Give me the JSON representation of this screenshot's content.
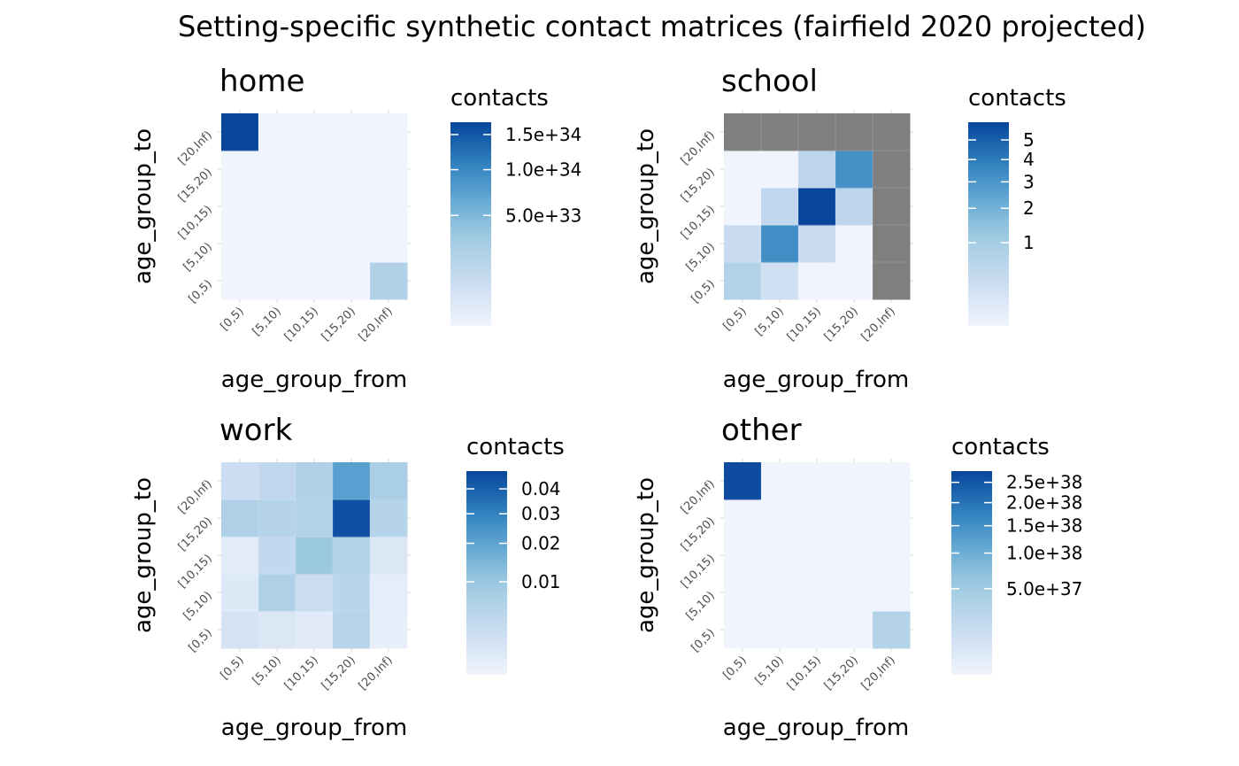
{
  "figure": {
    "title": "Setting-specific synthetic contact matrices (fairfield 2020 projected)"
  },
  "colors": {
    "low": "#f0f4fd",
    "high": "#08469b",
    "na": "#7f7f7f",
    "axis_text": "#4d4d4d"
  },
  "chart_data": [
    {
      "type": "heatmap",
      "title": "home",
      "xlabel": "age_group_from",
      "ylabel": "age_group_to",
      "categories_x": [
        "[0,5)",
        "[5,10)",
        "[10,15)",
        "[15,20)",
        "[20,Inf)"
      ],
      "categories_y": [
        "[0,5)",
        "[5,10)",
        "[10,15)",
        "[15,20)",
        "[20,Inf)"
      ],
      "values": [
        [
          0,
          0,
          0,
          0,
          2e+33
        ],
        [
          0,
          0,
          0,
          0,
          0
        ],
        [
          0,
          0,
          0,
          0,
          0
        ],
        [
          0,
          0,
          0,
          0,
          0
        ],
        [
          1.7e+34,
          0,
          0,
          0,
          0
        ]
      ],
      "legend": {
        "title": "contacts",
        "scale": "sqrt",
        "limits": [
          0,
          1.7e+34
        ],
        "ticks": [
          {
            "value": 1.5e+34,
            "label": "1.5e+34"
          },
          {
            "value": 1e+34,
            "label": "1.0e+34"
          },
          {
            "value": 5e+33,
            "label": "5.0e+33"
          }
        ]
      }
    },
    {
      "type": "heatmap",
      "title": "school",
      "xlabel": "age_group_from",
      "ylabel": "age_group_to",
      "categories_x": [
        "[0,5)",
        "[5,10)",
        "[10,15)",
        "[15,20)",
        "[20,Inf)"
      ],
      "categories_y": [
        "[0,5)",
        "[5,10)",
        "[10,15)",
        "[15,20)",
        "[20,Inf)"
      ],
      "values": [
        [
          0.7,
          0.2,
          0.0,
          0.0,
          null
        ],
        [
          0.3,
          3.3,
          0.3,
          0.0,
          null
        ],
        [
          0.0,
          0.4,
          6.0,
          0.5,
          null
        ],
        [
          0.0,
          0.0,
          0.5,
          3.2,
          null
        ],
        [
          null,
          null,
          null,
          null,
          null
        ]
      ],
      "legend": {
        "title": "contacts",
        "scale": "sqrt",
        "limits": [
          0,
          6
        ],
        "ticks": [
          {
            "value": 5,
            "label": "5"
          },
          {
            "value": 4,
            "label": "4"
          },
          {
            "value": 3,
            "label": "3"
          },
          {
            "value": 2,
            "label": "2"
          },
          {
            "value": 1,
            "label": "1"
          }
        ]
      }
    },
    {
      "type": "heatmap",
      "title": "work",
      "xlabel": "age_group_from",
      "ylabel": "age_group_to",
      "categories_x": [
        "[0,5)",
        "[5,10)",
        "[10,15)",
        "[15,20)",
        "[20,Inf)"
      ],
      "categories_y": [
        "[0,5)",
        "[5,10)",
        "[10,15)",
        "[15,20)",
        "[20,Inf)"
      ],
      "values": [
        [
          0.0012,
          0.0006,
          0.0004,
          0.0046,
          0.0001
        ],
        [
          0.0005,
          0.006,
          0.0022,
          0.0042,
          0.0002
        ],
        [
          0.0003,
          0.003,
          0.01,
          0.0055,
          0.0006
        ],
        [
          0.006,
          0.005,
          0.0055,
          0.045,
          0.005
        ],
        [
          0.002,
          0.0032,
          0.006,
          0.021,
          0.0072
        ]
      ],
      "legend": {
        "title": "contacts",
        "scale": "sqrt",
        "limits": [
          0,
          0.048
        ],
        "ticks": [
          {
            "value": 0.04,
            "label": "0.04"
          },
          {
            "value": 0.03,
            "label": "0.03"
          },
          {
            "value": 0.02,
            "label": "0.02"
          },
          {
            "value": 0.01,
            "label": "0.01"
          }
        ]
      }
    },
    {
      "type": "heatmap",
      "title": "other",
      "xlabel": "age_group_from",
      "ylabel": "age_group_to",
      "categories_x": [
        "[0,5)",
        "[5,10)",
        "[10,15)",
        "[15,20)",
        "[20,Inf)"
      ],
      "categories_y": [
        "[0,5)",
        "[5,10)",
        "[10,15)",
        "[15,20)",
        "[20,Inf)"
      ],
      "values": [
        [
          0,
          0,
          0,
          0,
          3e+37
        ],
        [
          0,
          0,
          0,
          0,
          0
        ],
        [
          0,
          0,
          0,
          0,
          0
        ],
        [
          0,
          0,
          0,
          0,
          0
        ],
        [
          2.7e+38,
          0,
          0,
          0,
          0
        ]
      ],
      "legend": {
        "title": "contacts",
        "scale": "sqrt",
        "limits": [
          0,
          2.8e+38
        ],
        "ticks": [
          {
            "value": 2.5e+38,
            "label": "2.5e+38"
          },
          {
            "value": 2e+38,
            "label": "2.0e+38"
          },
          {
            "value": 1.5e+38,
            "label": "1.5e+38"
          },
          {
            "value": 1e+38,
            "label": "1.0e+38"
          },
          {
            "value": 5e+37,
            "label": "5.0e+37"
          }
        ]
      }
    }
  ]
}
